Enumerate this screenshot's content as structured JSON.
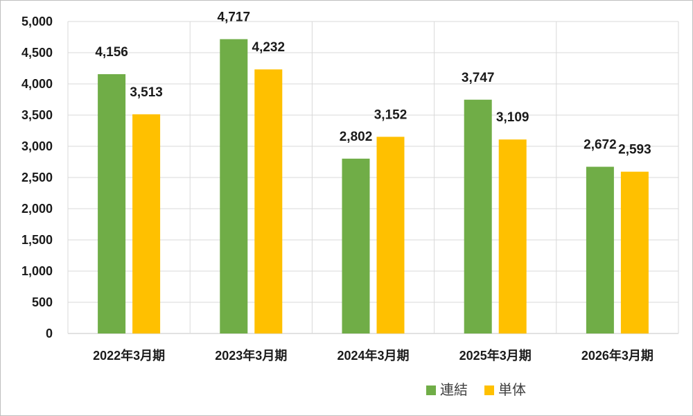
{
  "chart_data": {
    "type": "bar",
    "categories": [
      "2022年3月期",
      "2023年3月期",
      "2024年3月期",
      "2025年3月期",
      "2026年3月期"
    ],
    "series": [
      {
        "name": "連結",
        "values": [
          4156,
          4717,
          2802,
          3747,
          2672
        ],
        "color": "#70ad47"
      },
      {
        "name": "単体",
        "values": [
          3513,
          4232,
          3152,
          3109,
          2593
        ],
        "color": "#ffc000"
      }
    ],
    "data_labels": [
      [
        "4,156",
        "4,717",
        "2,802",
        "3,747",
        "2,672"
      ],
      [
        "3,513",
        "4,232",
        "3,152",
        "3,109",
        "2,593"
      ]
    ],
    "y_ticks": [
      "0",
      "500",
      "1,000",
      "1,500",
      "2,000",
      "2,500",
      "3,000",
      "3,500",
      "4,000",
      "4,500",
      "5,000"
    ],
    "ylim": [
      0,
      5000
    ],
    "y_step": 500,
    "grid": true,
    "legend_position": "bottom-center",
    "gridline_color": "#d9d9d9"
  }
}
